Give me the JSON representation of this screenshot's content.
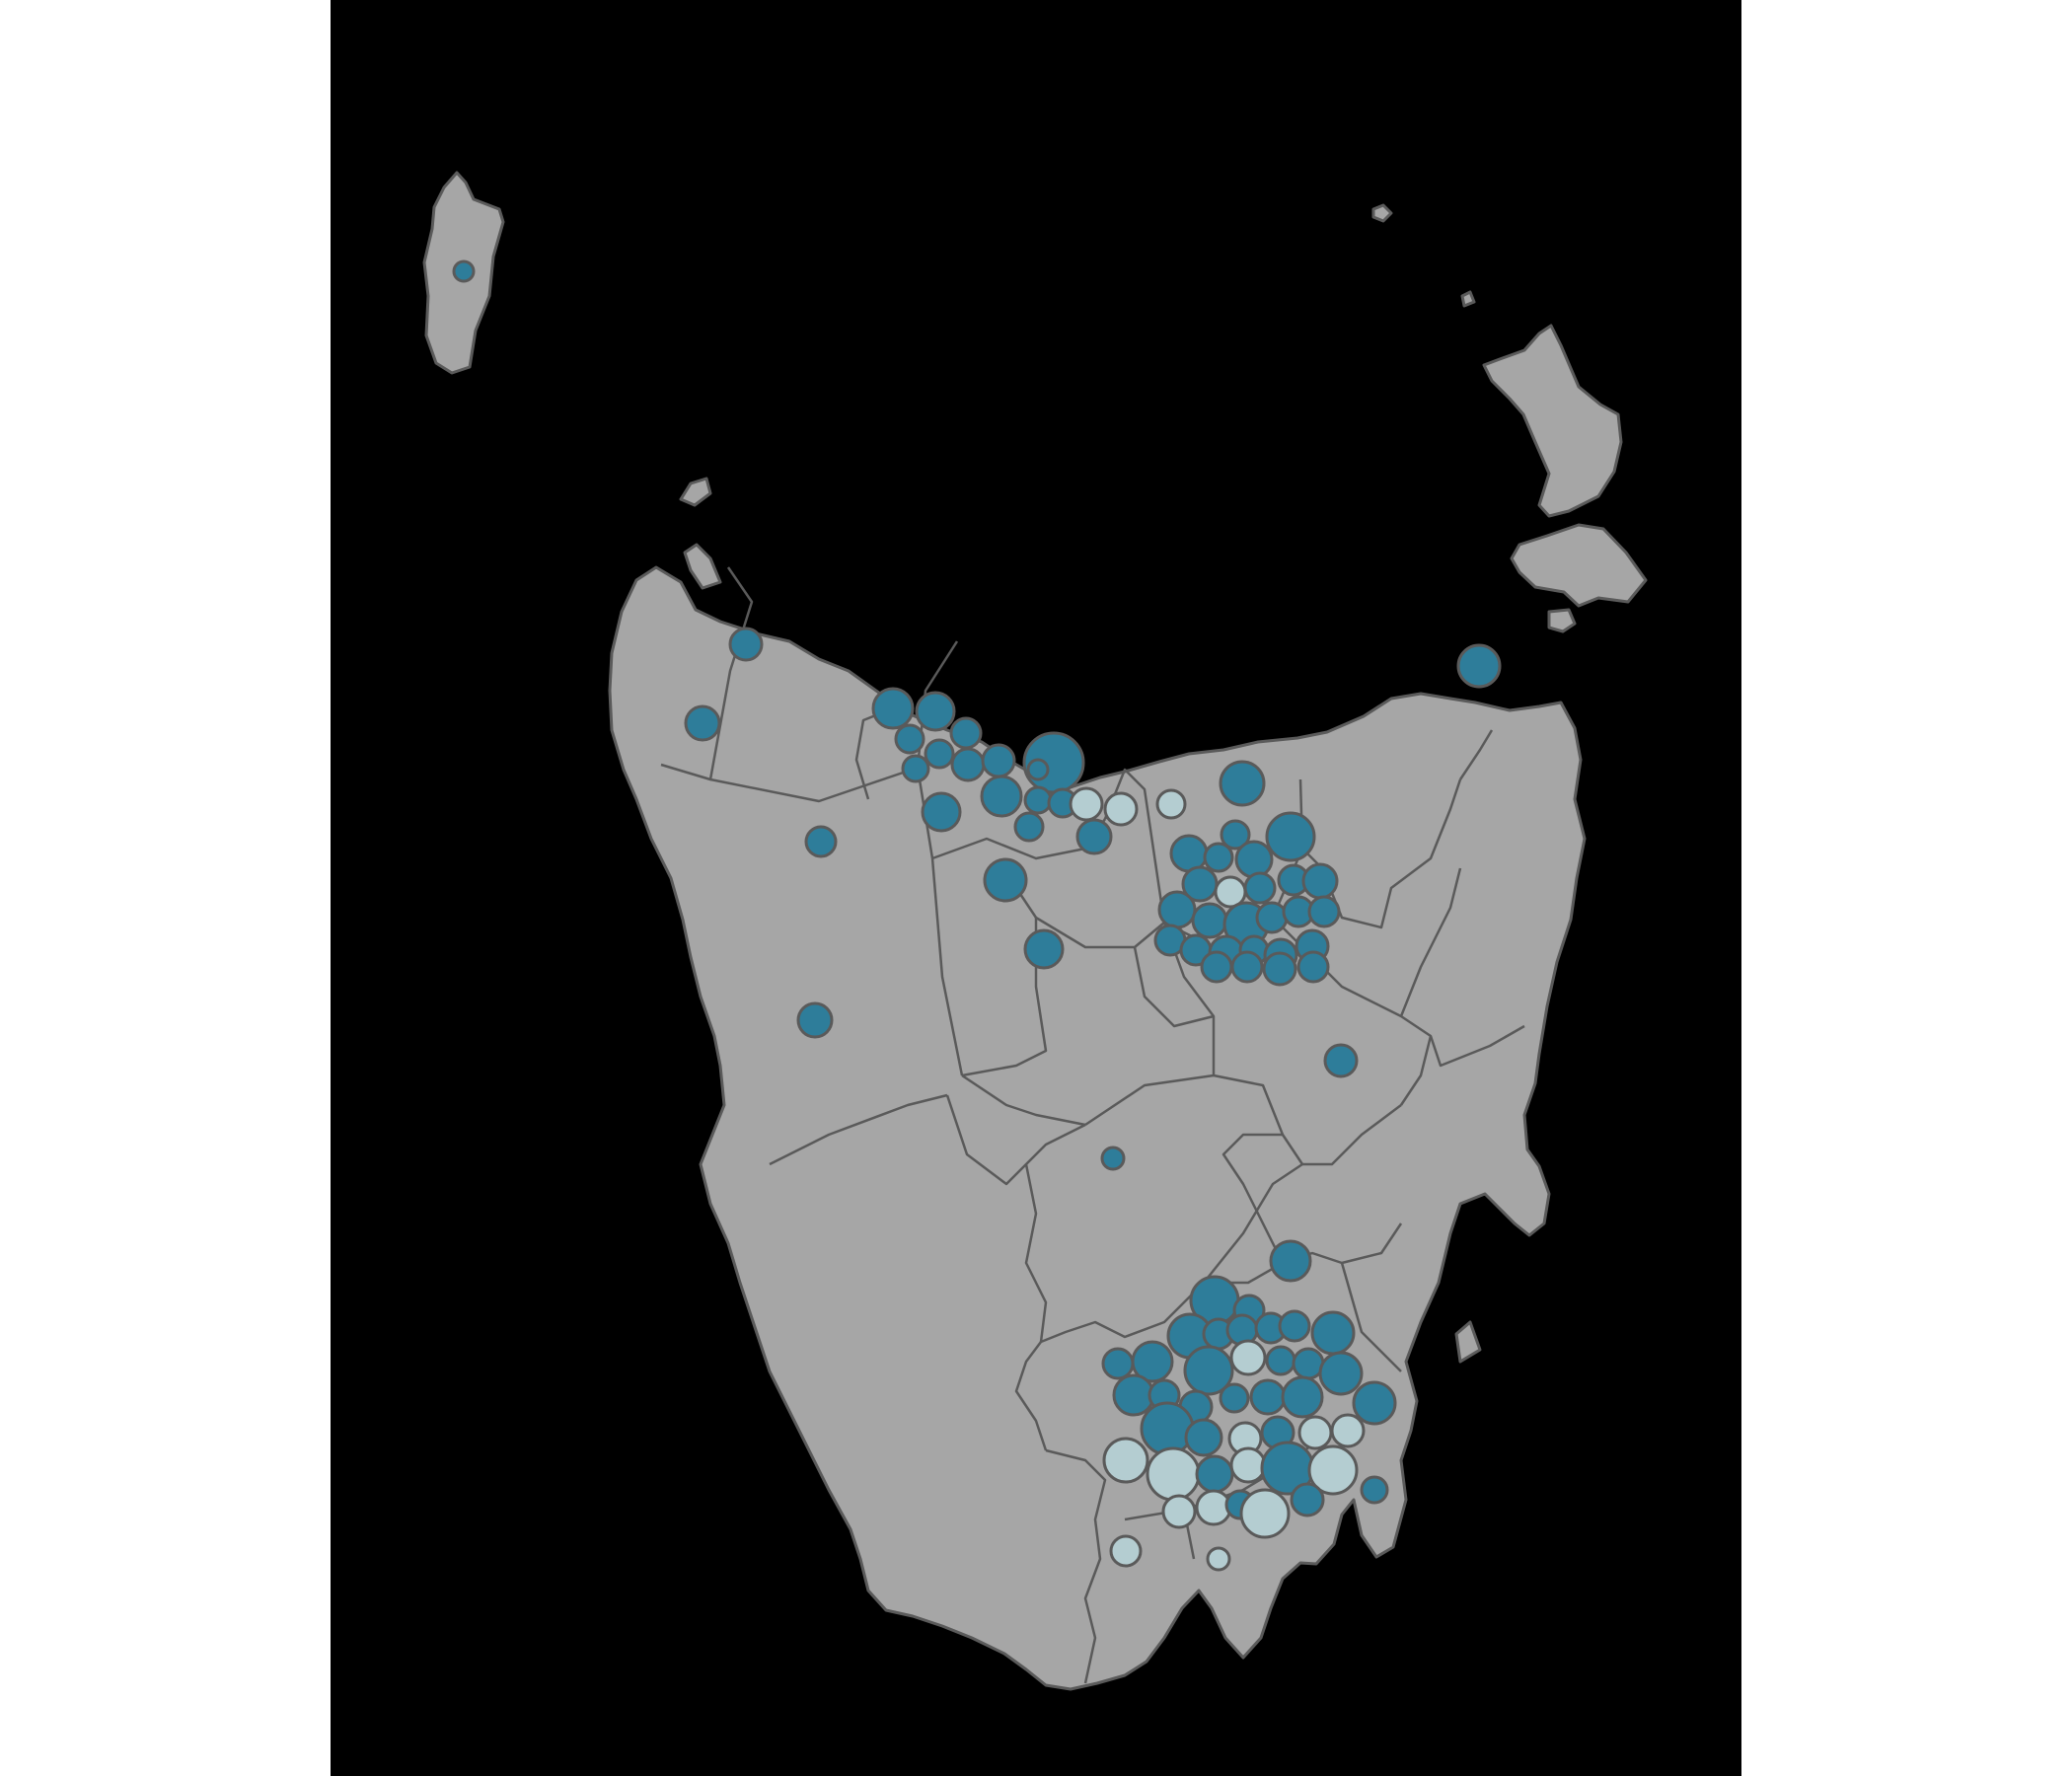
{
  "map": {
    "region": "Tasmania",
    "colors": {
      "background": "#000000",
      "land": "#a6a6a6",
      "boundary": "#5a5a5a",
      "dark_bubble": "#2e7d9a",
      "light_bubble": "#b4cdd1"
    },
    "bubble_categories": [
      {
        "key": "dark",
        "color": "#2e7d9a"
      },
      {
        "key": "light",
        "color": "#b4cdd1"
      }
    ],
    "bubble_count": 92
  }
}
